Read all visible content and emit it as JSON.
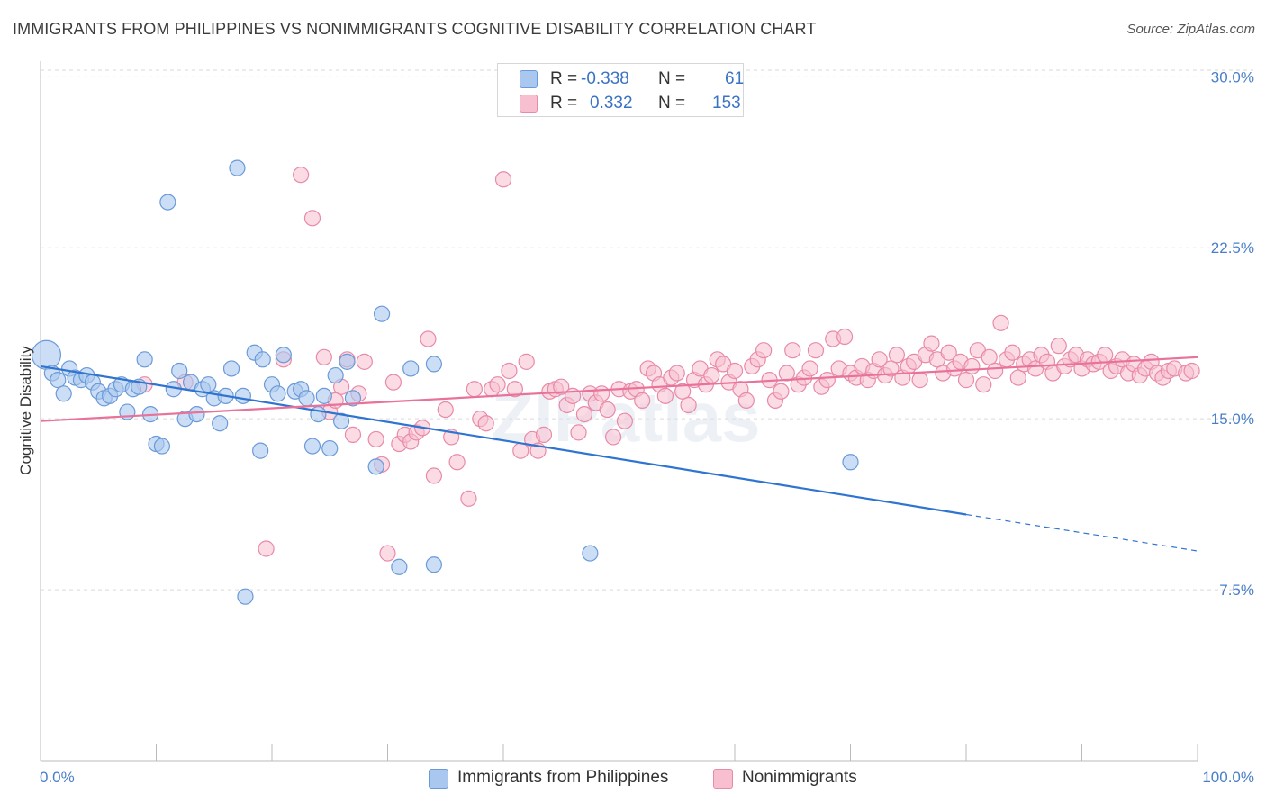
{
  "title": "IMMIGRANTS FROM PHILIPPINES VS NONIMMIGRANTS COGNITIVE DISABILITY CORRELATION CHART",
  "source": "Source: ZipAtlas.com",
  "watermark": "ZIPatlas",
  "colors": {
    "blue_fill": "#aac8ef",
    "blue_stroke": "#6a9ad8",
    "blue_line": "#2f74d0",
    "pink_fill": "#f7bfd0",
    "pink_stroke": "#e88aa8",
    "pink_line": "#e8729a",
    "axis_label": "#4a7fc8",
    "grid": "#d9d9d9"
  },
  "legend": {
    "rows": [
      {
        "r_label": "R =",
        "r_value": "-0.338",
        "n_label": "N =",
        "n_value": "61"
      },
      {
        "r_label": "R =",
        "r_value": "0.332",
        "n_label": "N =",
        "n_value": "153"
      }
    ]
  },
  "bottom_legend": {
    "blue": "Immigrants from Philippines",
    "pink": "Nonimmigrants"
  },
  "chart_data": {
    "type": "scatter",
    "xlabel": "",
    "ylabel": "Cognitive Disability",
    "x_tick_labels": [
      "0.0%",
      "100.0%"
    ],
    "y_tick_labels": [
      "7.5%",
      "15.0%",
      "22.5%",
      "30.0%"
    ],
    "xlim": [
      0,
      100
    ],
    "ylim": [
      0,
      31
    ],
    "y_ticks": [
      7.5,
      15.0,
      22.5,
      30.0
    ],
    "grid": "horizontal dashed",
    "series": [
      {
        "name": "Immigrants from Philippines",
        "color": "blue",
        "trend": {
          "x0": 0,
          "y0": 17.3,
          "x1": 80,
          "y1": 10.8,
          "dash_to_x": 100,
          "dash_to_y": 9.2
        },
        "points": [
          [
            0.5,
            17.8
          ],
          [
            1,
            17.0
          ],
          [
            1.5,
            16.7
          ],
          [
            2,
            16.1
          ],
          [
            2.5,
            17.2
          ],
          [
            3,
            16.8
          ],
          [
            3.5,
            16.7
          ],
          [
            4,
            16.9
          ],
          [
            4.5,
            16.6
          ],
          [
            5,
            16.2
          ],
          [
            5.5,
            15.9
          ],
          [
            6,
            16.0
          ],
          [
            6.5,
            16.3
          ],
          [
            7,
            16.5
          ],
          [
            7.5,
            15.3
          ],
          [
            8,
            16.3
          ],
          [
            8.5,
            16.4
          ],
          [
            9,
            17.6
          ],
          [
            9.5,
            15.2
          ],
          [
            10,
            13.9
          ],
          [
            10.5,
            13.8
          ],
          [
            11,
            24.5
          ],
          [
            11.5,
            16.3
          ],
          [
            12,
            17.1
          ],
          [
            12.5,
            15.0
          ],
          [
            13,
            16.6
          ],
          [
            13.5,
            15.2
          ],
          [
            14,
            16.3
          ],
          [
            14.5,
            16.5
          ],
          [
            15,
            15.9
          ],
          [
            15.5,
            14.8
          ],
          [
            16,
            16.0
          ],
          [
            16.5,
            17.2
          ],
          [
            17,
            26.0
          ],
          [
            17.5,
            16.0
          ],
          [
            17.7,
            7.2
          ],
          [
            18.5,
            17.9
          ],
          [
            19,
            13.6
          ],
          [
            19.2,
            17.6
          ],
          [
            20,
            16.5
          ],
          [
            20.5,
            16.1
          ],
          [
            21,
            17.8
          ],
          [
            22,
            16.2
          ],
          [
            22.5,
            16.3
          ],
          [
            23,
            15.9
          ],
          [
            23.5,
            13.8
          ],
          [
            24,
            15.2
          ],
          [
            24.5,
            16.0
          ],
          [
            25,
            13.7
          ],
          [
            25.5,
            16.9
          ],
          [
            26,
            14.9
          ],
          [
            26.5,
            17.5
          ],
          [
            27,
            15.9
          ],
          [
            29,
            12.9
          ],
          [
            29.5,
            19.6
          ],
          [
            31,
            8.5
          ],
          [
            32,
            17.2
          ],
          [
            34,
            17.4
          ],
          [
            34,
            8.6
          ],
          [
            47.5,
            9.1
          ],
          [
            70,
            13.1
          ]
        ]
      },
      {
        "name": "Nonimmigrants",
        "color": "pink",
        "trend": {
          "x0": 0,
          "y0": 14.9,
          "x1": 100,
          "y1": 17.7
        },
        "points": [
          [
            9,
            16.5
          ],
          [
            12.5,
            16.6
          ],
          [
            19.5,
            9.3
          ],
          [
            21,
            17.6
          ],
          [
            22.5,
            25.7
          ],
          [
            23.5,
            23.8
          ],
          [
            24.5,
            17.7
          ],
          [
            25,
            15.3
          ],
          [
            25.5,
            15.8
          ],
          [
            26,
            16.4
          ],
          [
            26.5,
            17.6
          ],
          [
            27,
            14.3
          ],
          [
            27.5,
            16.1
          ],
          [
            28,
            17.5
          ],
          [
            29,
            14.1
          ],
          [
            29.5,
            13.0
          ],
          [
            30,
            9.1
          ],
          [
            30.5,
            16.6
          ],
          [
            31,
            13.9
          ],
          [
            31.5,
            14.3
          ],
          [
            32,
            14.0
          ],
          [
            32.5,
            14.4
          ],
          [
            33,
            14.6
          ],
          [
            33.5,
            18.5
          ],
          [
            34,
            12.5
          ],
          [
            35,
            15.4
          ],
          [
            35.5,
            14.2
          ],
          [
            36,
            13.1
          ],
          [
            37,
            11.5
          ],
          [
            37.5,
            16.3
          ],
          [
            38,
            15.0
          ],
          [
            38.5,
            14.8
          ],
          [
            39,
            16.3
          ],
          [
            39.5,
            16.5
          ],
          [
            40,
            25.5
          ],
          [
            40.5,
            17.1
          ],
          [
            41,
            16.3
          ],
          [
            41.5,
            13.6
          ],
          [
            42,
            17.5
          ],
          [
            42.5,
            14.1
          ],
          [
            43,
            13.6
          ],
          [
            43.5,
            14.3
          ],
          [
            44,
            16.2
          ],
          [
            44.5,
            16.3
          ],
          [
            45,
            16.4
          ],
          [
            45.5,
            15.6
          ],
          [
            46,
            16.0
          ],
          [
            46.5,
            14.4
          ],
          [
            47,
            15.2
          ],
          [
            47.5,
            16.1
          ],
          [
            48,
            15.7
          ],
          [
            48.5,
            16.1
          ],
          [
            49,
            15.4
          ],
          [
            49.5,
            14.2
          ],
          [
            50,
            16.3
          ],
          [
            50.5,
            14.9
          ],
          [
            51,
            16.2
          ],
          [
            51.5,
            16.3
          ],
          [
            52,
            15.8
          ],
          [
            52.5,
            17.2
          ],
          [
            53,
            17.0
          ],
          [
            53.5,
            16.5
          ],
          [
            54,
            16.0
          ],
          [
            54.5,
            16.8
          ],
          [
            55,
            17.0
          ],
          [
            55.5,
            16.2
          ],
          [
            56,
            15.6
          ],
          [
            56.5,
            16.7
          ],
          [
            57,
            17.2
          ],
          [
            57.5,
            16.5
          ],
          [
            58,
            16.9
          ],
          [
            58.5,
            17.6
          ],
          [
            59,
            17.4
          ],
          [
            59.5,
            16.6
          ],
          [
            60,
            17.1
          ],
          [
            60.5,
            16.3
          ],
          [
            61,
            15.8
          ],
          [
            61.5,
            17.3
          ],
          [
            62,
            17.6
          ],
          [
            62.5,
            18.0
          ],
          [
            63,
            16.7
          ],
          [
            63.5,
            15.8
          ],
          [
            64,
            16.2
          ],
          [
            64.5,
            17.0
          ],
          [
            65,
            18.0
          ],
          [
            65.5,
            16.5
          ],
          [
            66,
            16.8
          ],
          [
            66.5,
            17.2
          ],
          [
            67,
            18.0
          ],
          [
            67.5,
            16.4
          ],
          [
            68,
            16.7
          ],
          [
            68.5,
            18.5
          ],
          [
            69,
            17.2
          ],
          [
            69.5,
            18.6
          ],
          [
            70,
            17.0
          ],
          [
            70.5,
            16.8
          ],
          [
            71,
            17.3
          ],
          [
            71.5,
            16.7
          ],
          [
            72,
            17.1
          ],
          [
            72.5,
            17.6
          ],
          [
            73,
            16.9
          ],
          [
            73.5,
            17.2
          ],
          [
            74,
            17.8
          ],
          [
            74.5,
            16.8
          ],
          [
            75,
            17.3
          ],
          [
            75.5,
            17.5
          ],
          [
            76,
            16.7
          ],
          [
            76.5,
            17.8
          ],
          [
            77,
            18.3
          ],
          [
            77.5,
            17.6
          ],
          [
            78,
            17.0
          ],
          [
            78.5,
            17.9
          ],
          [
            79,
            17.2
          ],
          [
            79.5,
            17.5
          ],
          [
            80,
            16.7
          ],
          [
            80.5,
            17.3
          ],
          [
            81,
            18.0
          ],
          [
            81.5,
            16.5
          ],
          [
            82,
            17.7
          ],
          [
            82.5,
            17.1
          ],
          [
            83,
            19.2
          ],
          [
            83.5,
            17.6
          ],
          [
            84,
            17.9
          ],
          [
            84.5,
            16.8
          ],
          [
            85,
            17.4
          ],
          [
            85.5,
            17.6
          ],
          [
            86,
            17.2
          ],
          [
            86.5,
            17.8
          ],
          [
            87,
            17.5
          ],
          [
            87.5,
            17.0
          ],
          [
            88,
            18.2
          ],
          [
            88.5,
            17.3
          ],
          [
            89,
            17.6
          ],
          [
            89.5,
            17.8
          ],
          [
            90,
            17.2
          ],
          [
            90.5,
            17.6
          ],
          [
            91,
            17.4
          ],
          [
            91.5,
            17.5
          ],
          [
            92,
            17.8
          ],
          [
            92.5,
            17.1
          ],
          [
            93,
            17.3
          ],
          [
            93.5,
            17.6
          ],
          [
            94,
            17.0
          ],
          [
            94.5,
            17.4
          ],
          [
            95,
            16.9
          ],
          [
            95.5,
            17.2
          ],
          [
            96,
            17.5
          ],
          [
            96.5,
            17.0
          ],
          [
            97,
            16.8
          ],
          [
            97.5,
            17.1
          ],
          [
            98,
            17.2
          ],
          [
            99,
            17.0
          ],
          [
            99.5,
            17.1
          ]
        ]
      }
    ]
  }
}
